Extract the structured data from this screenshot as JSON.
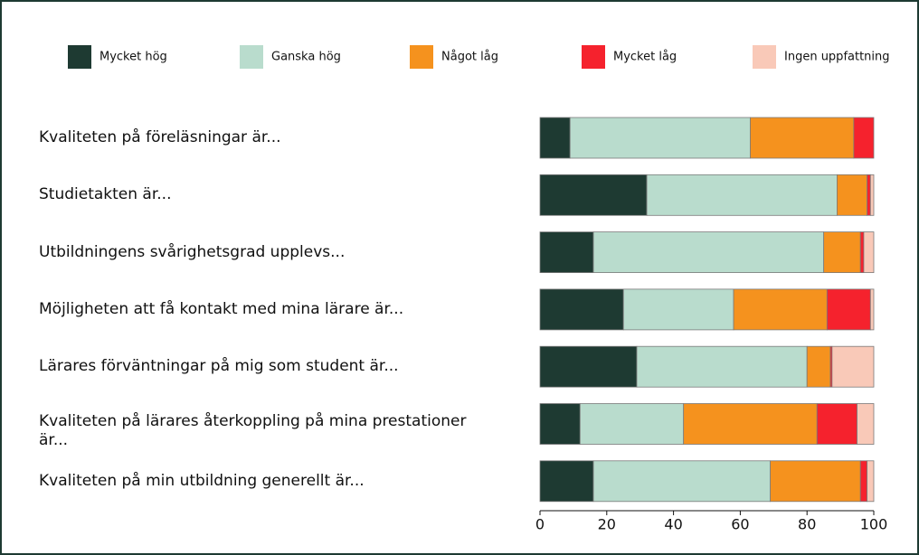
{
  "chart_data": {
    "type": "bar",
    "stacked": true,
    "orientation": "horizontal",
    "categories": [
      "Kvaliteten på föreläsningar är...",
      "Studietakten är...",
      "Utbildningens svårighetsgrad upplevs...",
      "Möjligheten att få kontakt med mina lärare är...",
      "Lärares förväntningar på mig som student är...",
      "Kvaliteten på lärares återkoppling på mina prestationer är...",
      "Kvaliteten på min utbildning generellt är..."
    ],
    "series": [
      {
        "name": "Mycket hög",
        "color": "#1e3a32",
        "values": [
          9,
          32,
          16,
          25,
          29,
          12,
          16
        ]
      },
      {
        "name": "Ganska hög",
        "color": "#b9dccd",
        "values": [
          54,
          57,
          69,
          33,
          51,
          31,
          53
        ]
      },
      {
        "name": "Något låg",
        "color": "#f5921e",
        "values": [
          31,
          9,
          11,
          28,
          7,
          40,
          27
        ]
      },
      {
        "name": "Mycket låg",
        "color": "#f5222d",
        "values": [
          6,
          1,
          1,
          13,
          0.5,
          12,
          2
        ]
      },
      {
        "name": "Ingen uppfattning",
        "color": "#f9c9b8",
        "values": [
          0,
          1,
          3,
          1,
          12.5,
          5,
          2
        ]
      }
    ],
    "xlim": [
      0,
      100
    ],
    "xticks": [
      0,
      20,
      40,
      60,
      80,
      100
    ],
    "legend": "top"
  }
}
